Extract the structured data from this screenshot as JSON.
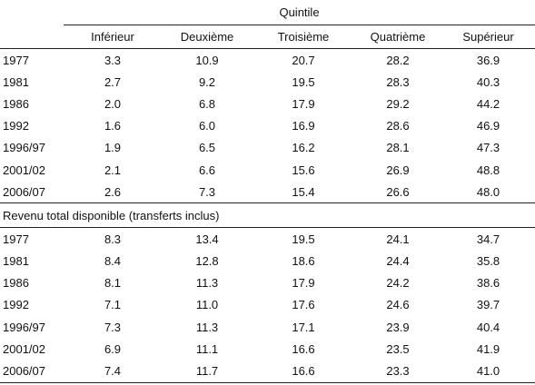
{
  "header": {
    "group_label": "Quintile",
    "columns": [
      "Inférieur",
      "Deuxième",
      "Troisième",
      "Quatrième",
      "Supérieur"
    ]
  },
  "section1": {
    "rows": [
      {
        "year": "1977",
        "values": [
          "3.3",
          "10.9",
          "20.7",
          "28.2",
          "36.9"
        ]
      },
      {
        "year": "1981",
        "values": [
          "2.7",
          "9.2",
          "19.5",
          "28.3",
          "40.3"
        ]
      },
      {
        "year": "1986",
        "values": [
          "2.0",
          "6.8",
          "17.9",
          "29.2",
          "44.2"
        ]
      },
      {
        "year": "1992",
        "values": [
          "1.6",
          "6.0",
          "16.9",
          "28.6",
          "46.9"
        ]
      },
      {
        "year": "1996/97",
        "values": [
          "1.9",
          "6.5",
          "16.2",
          "28.1",
          "47.3"
        ]
      },
      {
        "year": "2001/02",
        "values": [
          "2.1",
          "6.6",
          "15.6",
          "26.9",
          "48.8"
        ]
      },
      {
        "year": "2006/07",
        "values": [
          "2.6",
          "7.3",
          "15.4",
          "26.6",
          "48.0"
        ]
      }
    ]
  },
  "section2": {
    "title": "Revenu total disponible (transferts inclus)",
    "rows": [
      {
        "year": "1977",
        "values": [
          "8.3",
          "13.4",
          "19.5",
          "24.1",
          "34.7"
        ]
      },
      {
        "year": "1981",
        "values": [
          "8.4",
          "12.8",
          "18.6",
          "24.4",
          "35.8"
        ]
      },
      {
        "year": "1986",
        "values": [
          "8.1",
          "11.3",
          "17.9",
          "24.2",
          "38.6"
        ]
      },
      {
        "year": "1992",
        "values": [
          "7.1",
          "11.0",
          "17.6",
          "24.6",
          "39.7"
        ]
      },
      {
        "year": "1996/97",
        "values": [
          "7.3",
          "11.3",
          "17.1",
          "23.9",
          "40.4"
        ]
      },
      {
        "year": "2001/02",
        "values": [
          "6.9",
          "11.1",
          "16.6",
          "23.5",
          "41.9"
        ]
      },
      {
        "year": "2006/07",
        "values": [
          "7.4",
          "11.7",
          "16.6",
          "23.3",
          "41.0"
        ]
      }
    ]
  }
}
